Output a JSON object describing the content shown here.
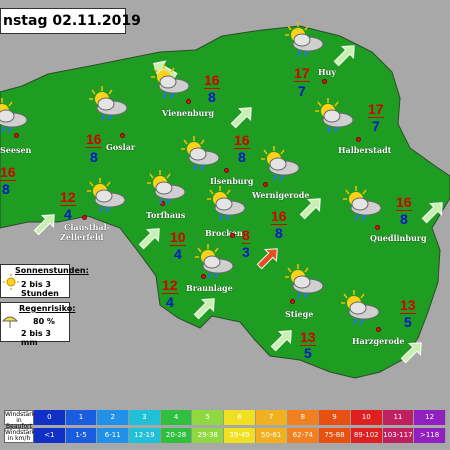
{
  "title": "nstag 02.11.2019",
  "colors": {
    "land": "#1f9d22",
    "background": "#a8a8a8",
    "tmax": "#d40000",
    "tmin": "#0018c8"
  },
  "towns": [
    {
      "name": "Seesen"
    },
    {
      "name": "Goslar"
    },
    {
      "name": "Vienenburg"
    },
    {
      "name": "Ilsenburg"
    },
    {
      "name": "Wernigerode"
    },
    {
      "name": "Halberstadt"
    },
    {
      "name": "Huy"
    },
    {
      "name": "Clausthal-"
    },
    {
      "name": "Zellerfeld"
    },
    {
      "name": "Torfhaus"
    },
    {
      "name": "Brocken"
    },
    {
      "name": "Braunlage"
    },
    {
      "name": "Quedlinburg"
    },
    {
      "name": "Stiege"
    },
    {
      "name": "Harzgerode"
    }
  ],
  "temps": [
    {
      "max": "16",
      "min": "8"
    },
    {
      "max": "16",
      "min": "8"
    },
    {
      "max": "16",
      "min": "8"
    },
    {
      "max": "16",
      "min": "8"
    },
    {
      "max": "17",
      "min": "7"
    },
    {
      "max": "17",
      "min": "7"
    },
    {
      "max": "12",
      "min": "4"
    },
    {
      "max": "10",
      "min": "4"
    },
    {
      "max": "8",
      "min": "3"
    },
    {
      "max": "16",
      "min": "8"
    },
    {
      "max": "12",
      "min": "4"
    },
    {
      "max": "16",
      "min": "8"
    },
    {
      "max": "13",
      "min": "5"
    },
    {
      "max": "13",
      "min": "5"
    }
  ],
  "weather_icon": "sun-cloud-rain-icon",
  "sun_legend": {
    "label": "Sonnenstunden:",
    "value": "2 bis 3 Stunden"
  },
  "rain_legend": {
    "label": "Regenrisiko:",
    "percent": "80 %",
    "amount": "2 bis 3 mm"
  },
  "beaufort": {
    "header": "Windstärke in Beaufort",
    "values": [
      "0",
      "1",
      "2",
      "3",
      "4",
      "5",
      "6",
      "7",
      "8",
      "9",
      "10",
      "11",
      "12"
    ]
  },
  "kmh": {
    "header": "Windstärke in km/h",
    "values": [
      "<1",
      "1-5",
      "6-11",
      "12-19",
      "20-28",
      "29-38",
      "39-49",
      "50-61",
      "62-74",
      "75-88",
      "89-102",
      "103-117",
      ">118"
    ]
  },
  "scale_colors": [
    "#1030c8",
    "#1a5ce0",
    "#2090e8",
    "#20c0d8",
    "#30c040",
    "#90d840",
    "#f0e020",
    "#f0b020",
    "#f08020",
    "#e85010",
    "#e02020",
    "#c02060",
    "#9020c0"
  ]
}
